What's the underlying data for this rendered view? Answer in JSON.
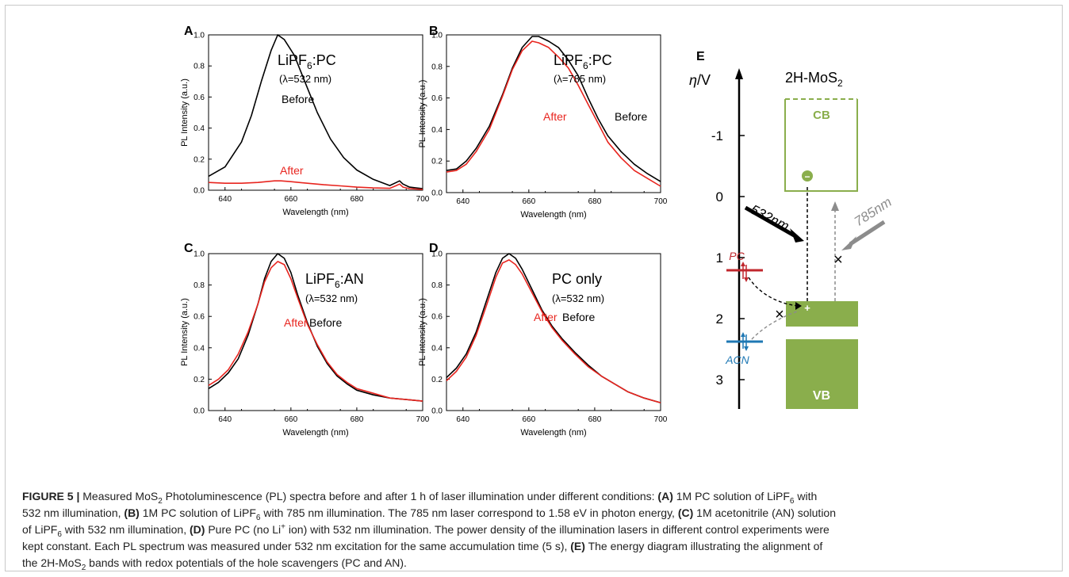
{
  "chart_data": [
    {
      "type": "line",
      "panel": "A",
      "xlabel": "Wavelength (nm)",
      "ylabel": "PL Intensity (a.u.)",
      "xlim": [
        635,
        700
      ],
      "ylim": [
        0,
        1.0
      ],
      "xticks": [
        640,
        660,
        680,
        700
      ],
      "yticks": [
        0.0,
        0.2,
        0.4,
        0.6,
        0.8,
        1.0
      ],
      "title_main": "LiPF",
      "title_sub": "6",
      "title_tail": ":PC",
      "excitation": "(λ=532 nm)",
      "series": [
        {
          "name": "Before",
          "color": "#000000",
          "x": [
            635,
            640,
            645,
            648,
            651,
            654,
            656,
            658,
            661,
            664,
            668,
            672,
            676,
            680,
            685,
            690,
            692,
            693,
            694,
            696,
            700
          ],
          "y": [
            0.09,
            0.15,
            0.31,
            0.48,
            0.7,
            0.9,
            1.0,
            0.97,
            0.87,
            0.71,
            0.5,
            0.33,
            0.21,
            0.13,
            0.07,
            0.03,
            0.05,
            0.06,
            0.04,
            0.02,
            0.01
          ]
        },
        {
          "name": "After",
          "color": "#e8251f",
          "x": [
            635,
            640,
            645,
            650,
            655,
            657,
            660,
            665,
            670,
            675,
            680,
            685,
            690,
            692,
            693,
            694,
            696,
            700
          ],
          "y": [
            0.05,
            0.045,
            0.045,
            0.05,
            0.06,
            0.06,
            0.055,
            0.045,
            0.035,
            0.028,
            0.02,
            0.015,
            0.012,
            0.03,
            0.04,
            0.02,
            0.01,
            0.005
          ]
        }
      ]
    },
    {
      "type": "line",
      "panel": "B",
      "xlabel": "Wavelength (nm)",
      "ylabel": "PL Intensity (a.u.)",
      "xlim": [
        635,
        700
      ],
      "ylim": [
        0,
        1.0
      ],
      "xticks": [
        640,
        660,
        680,
        700
      ],
      "yticks": [
        0.0,
        0.2,
        0.4,
        0.6,
        0.8,
        1.0
      ],
      "title_main": "LiPF",
      "title_sub": "6",
      "title_tail": ":PC",
      "excitation": "(λ=785 nm)",
      "series": [
        {
          "name": "Before",
          "color": "#000000",
          "x": [
            635,
            638,
            641,
            644,
            648,
            652,
            655,
            658,
            661,
            663,
            666,
            669,
            672,
            675,
            678,
            681,
            684,
            688,
            692,
            696,
            700
          ],
          "y": [
            0.14,
            0.15,
            0.2,
            0.28,
            0.42,
            0.62,
            0.79,
            0.92,
            0.99,
            0.99,
            0.96,
            0.92,
            0.84,
            0.74,
            0.6,
            0.47,
            0.36,
            0.26,
            0.18,
            0.12,
            0.07
          ]
        },
        {
          "name": "After",
          "color": "#e8251f",
          "x": [
            635,
            638,
            641,
            644,
            648,
            652,
            655,
            658,
            661,
            663,
            666,
            669,
            672,
            675,
            678,
            681,
            684,
            688,
            692,
            696,
            700
          ],
          "y": [
            0.13,
            0.14,
            0.18,
            0.26,
            0.4,
            0.61,
            0.78,
            0.9,
            0.96,
            0.95,
            0.92,
            0.86,
            0.79,
            0.68,
            0.56,
            0.44,
            0.32,
            0.22,
            0.14,
            0.09,
            0.04
          ]
        }
      ]
    },
    {
      "type": "line",
      "panel": "C",
      "xlabel": "Wavelength (nm)",
      "ylabel": "PL Intensity (a.u.)",
      "xlim": [
        635,
        700
      ],
      "ylim": [
        0,
        1.0
      ],
      "xticks": [
        640,
        660,
        680,
        700
      ],
      "yticks": [
        0.0,
        0.2,
        0.4,
        0.6,
        0.8,
        1.0
      ],
      "title_main": "LiPF",
      "title_sub": "6",
      "title_tail": ":AN",
      "excitation": "(λ=532 nm)",
      "series": [
        {
          "name": "Before",
          "color": "#000000",
          "x": [
            635,
            638,
            641,
            644,
            647,
            650,
            652,
            654,
            656,
            658,
            660,
            662,
            665,
            668,
            671,
            674,
            677,
            680,
            685,
            690,
            695,
            700
          ],
          "y": [
            0.14,
            0.18,
            0.24,
            0.33,
            0.48,
            0.68,
            0.84,
            0.95,
            1.0,
            0.97,
            0.88,
            0.74,
            0.56,
            0.41,
            0.3,
            0.22,
            0.17,
            0.13,
            0.1,
            0.08,
            0.07,
            0.06
          ]
        },
        {
          "name": "After",
          "color": "#e8251f",
          "x": [
            635,
            638,
            641,
            644,
            647,
            650,
            652,
            654,
            656,
            658,
            660,
            662,
            665,
            668,
            671,
            674,
            677,
            680,
            685,
            690,
            695,
            700
          ],
          "y": [
            0.16,
            0.2,
            0.26,
            0.36,
            0.5,
            0.68,
            0.82,
            0.91,
            0.95,
            0.93,
            0.84,
            0.72,
            0.55,
            0.42,
            0.31,
            0.23,
            0.18,
            0.14,
            0.11,
            0.08,
            0.07,
            0.06
          ]
        }
      ]
    },
    {
      "type": "line",
      "panel": "D",
      "xlabel": "Wavelength (nm)",
      "ylabel": "PL Intensity (a.u.)",
      "xlim": [
        635,
        700
      ],
      "ylim": [
        0,
        1.0
      ],
      "xticks": [
        640,
        660,
        680,
        700
      ],
      "yticks": [
        0.0,
        0.2,
        0.4,
        0.6,
        0.8,
        1.0
      ],
      "title_main": "PC only",
      "title_sub": "",
      "title_tail": "",
      "excitation": "(λ=532 nm)",
      "series": [
        {
          "name": "Before",
          "color": "#000000",
          "x": [
            635,
            638,
            641,
            644,
            647,
            650,
            652,
            654,
            656,
            658,
            661,
            664,
            667,
            670,
            674,
            678,
            682,
            686,
            690,
            695,
            700
          ],
          "y": [
            0.21,
            0.27,
            0.36,
            0.5,
            0.69,
            0.88,
            0.97,
            1.0,
            0.97,
            0.9,
            0.77,
            0.64,
            0.54,
            0.46,
            0.37,
            0.29,
            0.22,
            0.17,
            0.12,
            0.08,
            0.05
          ]
        },
        {
          "name": "After",
          "color": "#e8251f",
          "x": [
            635,
            638,
            641,
            644,
            647,
            650,
            652,
            654,
            656,
            658,
            661,
            664,
            667,
            670,
            674,
            678,
            682,
            686,
            690,
            695,
            700
          ],
          "y": [
            0.19,
            0.25,
            0.34,
            0.48,
            0.66,
            0.85,
            0.94,
            0.96,
            0.93,
            0.87,
            0.75,
            0.63,
            0.53,
            0.45,
            0.36,
            0.28,
            0.22,
            0.17,
            0.12,
            0.08,
            0.05
          ]
        }
      ]
    }
  ],
  "panel_labels": {
    "a": "A",
    "b": "B",
    "c": "C",
    "d": "D",
    "e": "E"
  },
  "series_labels": {
    "before": "Before",
    "after": "After"
  },
  "diagram": {
    "axis_label_eta": "η",
    "axis_label_unit": "/V",
    "ticks": [
      "-1",
      "0",
      "1",
      "2",
      "3"
    ],
    "material_main": "2H-MoS",
    "material_sub": "2",
    "cb": "CB",
    "vb": "VB",
    "laser_532": "532nm",
    "laser_785": "785nm",
    "pc": "PC",
    "acn": "ACN",
    "electron": "−",
    "hole": "+",
    "cross": "×",
    "colors": {
      "band": "#8aae4c",
      "pc": "#c0272d",
      "acn": "#1f78b4",
      "laser_785": "#8c8c8c"
    }
  },
  "caption": {
    "lead": "FIGURE 5 |",
    "l1": "Measured MoS",
    "l1s": "2",
    "l1b": " Photoluminescence (PL) spectra before and after 1 h of laser illumination under different conditions: ",
    "a": "(A)",
    "a_text": " 1M PC solution of LiPF",
    "a_sub": "6",
    "a_tail": " with",
    "l2": "532 nm illumination, ",
    "b": "(B)",
    "b_text": " 1M PC solution of LiPF",
    "b_sub": "6",
    "b_tail": " with 785 nm illumination. The 785 nm laser correspond to 1.58 eV in photon energy, ",
    "c": "(C)",
    "c_text": " 1M acetonitrile (AN) solution",
    "l3": "of LiPF",
    "l3s": "6",
    "l3b": " with 532 nm illumination, ",
    "d": "(D)",
    "d_text": " Pure PC (no Li",
    "d_sup": "+",
    "d_tail": " ion) with 532 nm illumination. The power density of the illumination lasers in different control experiments were",
    "l4": "kept constant. Each PL spectrum was measured under 532 nm excitation for the same accumulation time (5 s), ",
    "e": "(E)",
    "e_text": " The energy diagram illustrating the alignment of",
    "l5": "the 2H-MoS",
    "l5s": "2",
    "l5b": " bands with redox potentials of the hole scavengers (PC and AN)."
  }
}
